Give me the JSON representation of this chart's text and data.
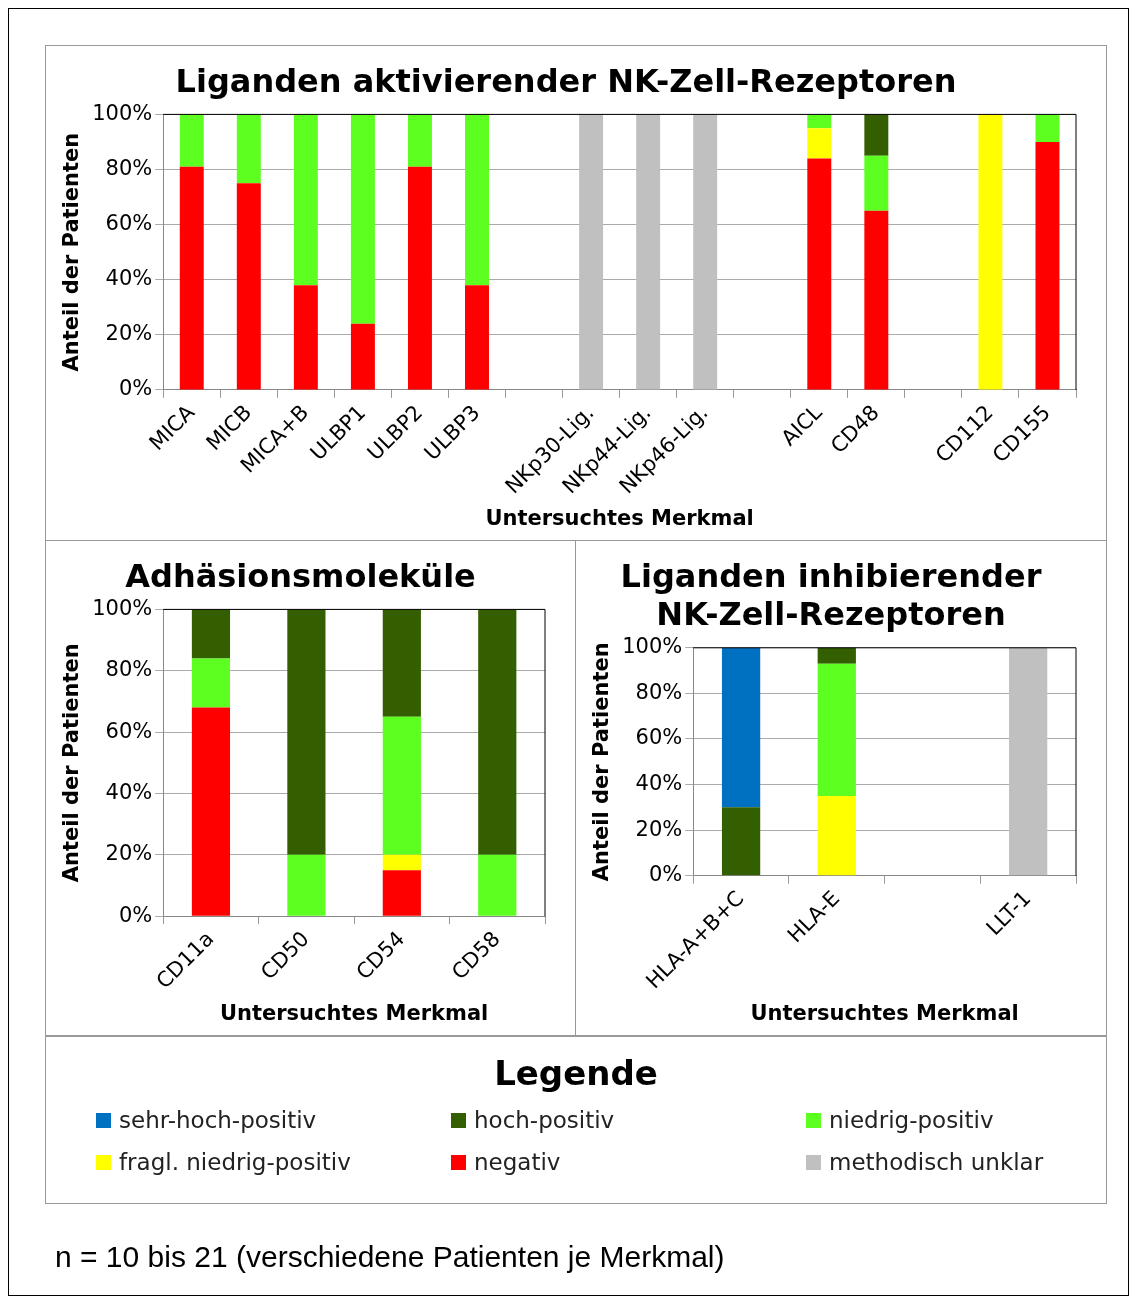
{
  "chart_data": [
    {
      "type": "bar",
      "title": "Liganden aktivierender NK-Zell-Rezeptoren",
      "xlabel": "Untersuchtes Merkmal",
      "ylabel": "Anteil der Patienten",
      "stacked": true,
      "grid": "y",
      "legend": "bottom",
      "legend_title": "Legende",
      "annotations": [
        "n = 10 bis 21 (verschiedene Patienten je Merkmal)"
      ],
      "categories": [
        "MICA",
        "MICB",
        "MICA+B",
        "ULBP1",
        "ULBP2",
        "ULBP3",
        null,
        "NKp30-Lig.",
        "NKp44-Lig.",
        "NKp46-Lig.",
        null,
        "AICL",
        "CD48",
        null,
        "CD112",
        "CD155"
      ],
      "ylim": [
        0,
        100
      ],
      "yticks": [
        {
          "value": 0,
          "label": "0%"
        },
        {
          "value": 20,
          "label": "20%"
        },
        {
          "value": 40,
          "label": "40%"
        },
        {
          "value": 60,
          "label": "60%"
        },
        {
          "value": 80,
          "label": "80%"
        },
        {
          "value": 100,
          "label": "100%"
        }
      ],
      "series": [
        {
          "name": "negativ",
          "color": "#ff0000",
          "values": [
            81,
            75,
            38,
            24,
            81,
            38,
            null,
            null,
            null,
            null,
            null,
            84,
            65,
            null,
            null,
            90
          ]
        },
        {
          "name": "fragl. niedrig-positiv",
          "color": "#ffff00",
          "values": [
            null,
            null,
            null,
            null,
            null,
            null,
            null,
            null,
            null,
            null,
            null,
            11,
            null,
            null,
            100,
            null
          ]
        },
        {
          "name": "niedrig-positiv",
          "color": "#5cff1f",
          "values": [
            19,
            25,
            62,
            76,
            19,
            62,
            null,
            null,
            null,
            null,
            null,
            5,
            20,
            null,
            null,
            10
          ]
        },
        {
          "name": "hoch-positiv",
          "color": "#335f00",
          "values": [
            null,
            null,
            null,
            null,
            null,
            null,
            null,
            null,
            null,
            null,
            null,
            null,
            15,
            null,
            null,
            null
          ]
        },
        {
          "name": "methodisch unklar",
          "color": "#c0c0c0",
          "values": [
            null,
            null,
            null,
            null,
            null,
            null,
            null,
            100,
            100,
            100,
            null,
            null,
            null,
            null,
            null,
            null
          ]
        }
      ]
    },
    {
      "type": "bar",
      "title": "Adhäsionsmoleküle",
      "xlabel": "Untersuchtes Merkmal",
      "ylabel": "Anteil der Patienten",
      "stacked": true,
      "grid": "y",
      "categories": [
        "CD11a",
        "CD50",
        "CD54",
        "CD58"
      ],
      "ylim": [
        0,
        100
      ],
      "yticks": [
        {
          "value": 0,
          "label": "0%"
        },
        {
          "value": 20,
          "label": "20%"
        },
        {
          "value": 40,
          "label": "40%"
        },
        {
          "value": 60,
          "label": "60%"
        },
        {
          "value": 80,
          "label": "80%"
        },
        {
          "value": 100,
          "label": "100%"
        }
      ],
      "series": [
        {
          "name": "negativ",
          "color": "#ff0000",
          "values": [
            68,
            null,
            15,
            null
          ]
        },
        {
          "name": "fragl. niedrig-positiv",
          "color": "#ffff00",
          "values": [
            null,
            null,
            5,
            null
          ]
        },
        {
          "name": "niedrig-positiv",
          "color": "#5cff1f",
          "values": [
            16,
            20,
            45,
            20
          ]
        },
        {
          "name": "hoch-positiv",
          "color": "#335f00",
          "values": [
            16,
            80,
            35,
            80
          ]
        }
      ]
    },
    {
      "type": "bar",
      "title": "Liganden inhibierender NK-Zell-Rezeptoren",
      "xlabel": "Untersuchtes Merkmal",
      "ylabel": "Anteil der Patienten",
      "stacked": true,
      "grid": "y",
      "categories": [
        "HLA-A+B+C",
        "HLA-E",
        null,
        "LLT-1"
      ],
      "ylim": [
        0,
        100
      ],
      "yticks": [
        {
          "value": 0,
          "label": "0%"
        },
        {
          "value": 20,
          "label": "20%"
        },
        {
          "value": 40,
          "label": "40%"
        },
        {
          "value": 60,
          "label": "60%"
        },
        {
          "value": 80,
          "label": "80%"
        },
        {
          "value": 100,
          "label": "100%"
        }
      ],
      "series": [
        {
          "name": "fragl. niedrig-positiv",
          "color": "#ffff00",
          "values": [
            null,
            35,
            null,
            null
          ]
        },
        {
          "name": "niedrig-positiv",
          "color": "#5cff1f",
          "values": [
            null,
            58,
            null,
            null
          ]
        },
        {
          "name": "hoch-positiv",
          "color": "#335f00",
          "values": [
            30,
            7,
            null,
            null
          ]
        },
        {
          "name": "sehr-hoch-positiv",
          "color": "#0070c0",
          "values": [
            70,
            null,
            null,
            null
          ]
        },
        {
          "name": "methodisch unklar",
          "color": "#c0c0c0",
          "values": [
            null,
            null,
            null,
            100
          ]
        }
      ]
    }
  ]
}
